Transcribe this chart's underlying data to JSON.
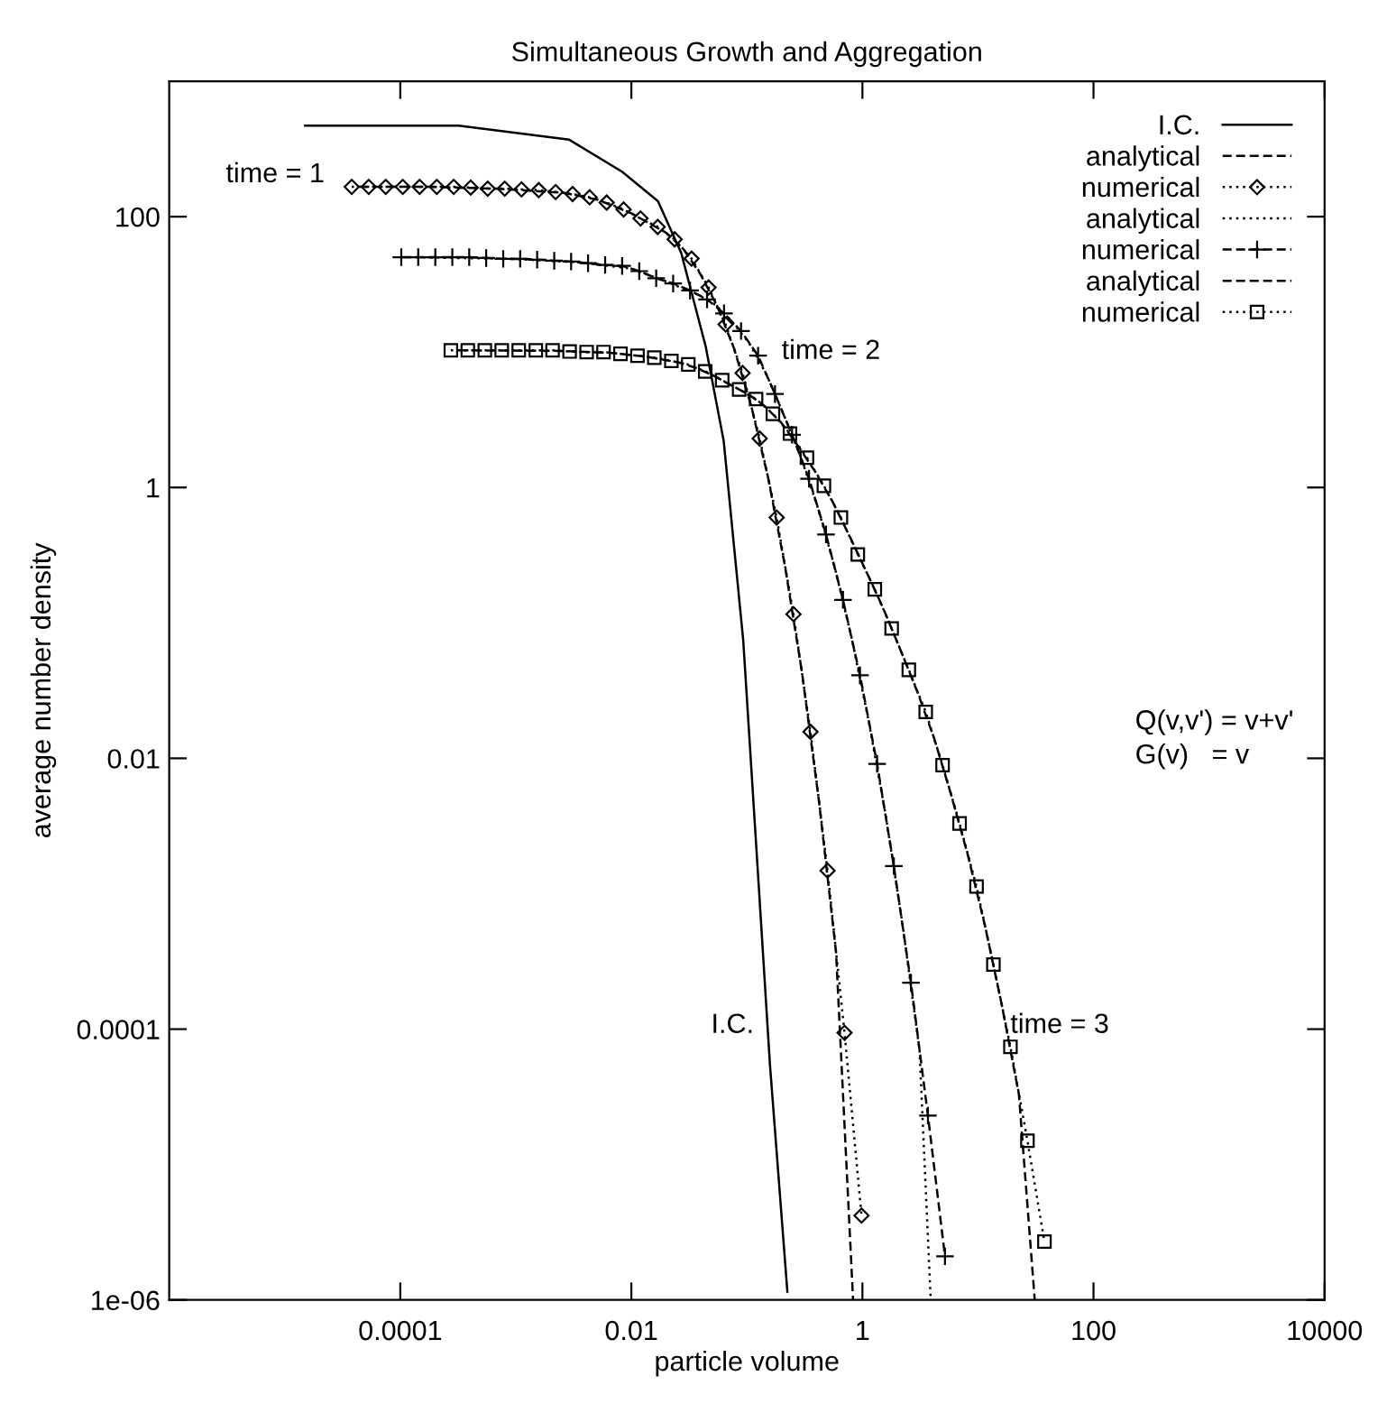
{
  "chart_data": {
    "type": "line",
    "title": "Simultaneous Growth and Aggregation",
    "xlabel": "particle volume",
    "ylabel": "average number density",
    "log": "xy",
    "xlim": [
      1e-06,
      10000
    ],
    "ylim": [
      1e-06,
      1000
    ],
    "xticks": [
      0.0001,
      0.01,
      1,
      100,
      10000
    ],
    "yticks": [
      {
        "value": 1e-06,
        "label": "1e-06"
      },
      {
        "value": 0.0001,
        "label": "0.0001"
      },
      {
        "value": 0.01,
        "label": "0.01"
      },
      1,
      100
    ],
    "grid": false,
    "legend": "top right",
    "series": [
      {
        "name": "I.C.",
        "color": "#000000",
        "line_style": "solid",
        "marker": "none",
        "x": [
          1.5e-05,
          0.00032,
          0.0029,
          0.0083,
          0.017,
          0.027,
          0.044,
          0.063,
          0.093,
          0.127,
          0.158,
          0.224
        ],
        "values": [
          470,
          470,
          370,
          215,
          130,
          54,
          11,
          2.2,
          0.074,
          0.0011,
          5.6e-05,
          1.15e-06
        ]
      },
      {
        "name": "analytical",
        "color": "#000000",
        "line_style": "dashed",
        "marker": "none",
        "x": [
          4.5e-05,
          0.000174,
          0.000677,
          0.00262,
          0.00515,
          0.0102,
          0.02,
          0.0281,
          0.0393,
          0.0552,
          0.0775,
          0.109,
          0.153,
          0.214,
          0.3,
          0.421,
          0.591,
          0.83
        ],
        "values": [
          166,
          166,
          161,
          150,
          133,
          105,
          76,
          58,
          38,
          22,
          10.6,
          4.0,
          1.17,
          0.26,
          0.043,
          0.0048,
          0.00037,
          1e-06
        ]
      },
      {
        "name": "numerical",
        "color": "#000000",
        "line_style": "dotted",
        "marker": "diamond",
        "x": [
          3.8e-05,
          5.33e-05,
          7.48e-05,
          0.000105,
          0.000147,
          0.000207,
          0.00029,
          0.000407,
          0.000571,
          0.000801,
          0.00112,
          0.00158,
          0.00221,
          0.0031,
          0.00435,
          0.00611,
          0.00857,
          0.012,
          0.0169,
          0.0237,
          0.0332,
          0.0466,
          0.0654,
          0.0917,
          0.129,
          0.181,
          0.253,
          0.355,
          0.499,
          0.7,
          0.982
        ],
        "values": [
          166,
          166,
          166,
          166,
          166,
          166,
          166,
          164,
          161,
          161,
          159,
          157,
          152,
          147,
          139,
          127,
          113,
          97,
          84,
          68,
          49,
          30,
          16,
          7.0,
          2.3,
          0.6,
          0.116,
          0.0157,
          0.00148,
          9.4e-05,
          4.2e-06
        ]
      },
      {
        "name": "analytical",
        "color": "#000000",
        "line_style": "dotted",
        "marker": "none",
        "x": [
          0.000121,
          0.000922,
          0.00357,
          0.00986,
          0.0194,
          0.0382,
          0.0536,
          0.0751,
          0.105,
          0.148,
          0.207,
          0.292,
          0.409,
          0.574,
          0.805,
          1.13,
          1.59,
          2.22,
          3.12,
          3.9
        ],
        "values": [
          50.2,
          48.8,
          46,
          41.4,
          33.6,
          26.4,
          22.3,
          16.6,
          11.6,
          6.8,
          3.5,
          1.69,
          0.72,
          0.26,
          0.078,
          0.019,
          0.0038,
          0.0006,
          7e-05,
          1e-06
        ]
      },
      {
        "name": "numerical",
        "color": "#000000",
        "line_style": "dashed",
        "marker": "cross",
        "x": [
          0.000102,
          0.000143,
          0.000201,
          0.000282,
          0.000395,
          0.000554,
          0.000778,
          0.00109,
          0.00153,
          0.00215,
          0.00301,
          0.00422,
          0.00593,
          0.00832,
          0.0117,
          0.0164,
          0.023,
          0.0322,
          0.0452,
          0.0634,
          0.089,
          0.125,
          0.175,
          0.246,
          0.345,
          0.484,
          0.679,
          0.952,
          1.34,
          1.87,
          2.63,
          3.69,
          5.18
        ],
        "values": [
          50.2,
          50.2,
          50.2,
          50.2,
          50.2,
          49.5,
          48.8,
          48.8,
          48.1,
          47.3,
          46.6,
          45.3,
          44,
          43.3,
          39.6,
          35.1,
          32.1,
          28.5,
          24.5,
          19.3,
          14.3,
          9.4,
          4.9,
          2.45,
          1.16,
          0.45,
          0.148,
          0.041,
          0.0091,
          0.0016,
          0.00022,
          2.3e-05,
          2.1e-06
        ]
      },
      {
        "name": "analytical",
        "color": "#000000",
        "line_style": "dashed",
        "marker": "none",
        "x": [
          0.000325,
          0.00247,
          0.0068,
          0.0134,
          0.0263,
          0.0369,
          0.0517,
          0.0724,
          0.102,
          0.142,
          0.199,
          0.28,
          0.392,
          0.55,
          0.771,
          1.08,
          1.52,
          2.12,
          2.99,
          4.18,
          5.85,
          8.21,
          11.5,
          16.1,
          22.6,
          31
        ],
        "values": [
          10.3,
          10.2,
          9.85,
          9.25,
          8.35,
          7.6,
          6.7,
          5.7,
          4.9,
          4.0,
          3.0,
          2.0,
          1.3,
          0.79,
          0.44,
          0.24,
          0.127,
          0.064,
          0.031,
          0.014,
          0.0054,
          0.0019,
          0.00058,
          0.00015,
          3.3e-05,
          1e-06
        ]
      },
      {
        "name": "numerical",
        "color": "#000000",
        "line_style": "dotted",
        "marker": "square",
        "x": [
          0.000274,
          0.000384,
          0.000539,
          0.000755,
          0.00106,
          0.00149,
          0.00208,
          0.00292,
          0.0041,
          0.00574,
          0.00805,
          0.0113,
          0.0158,
          0.0222,
          0.0311,
          0.0436,
          0.0611,
          0.0857,
          0.12,
          0.168,
          0.236,
          0.331,
          0.464,
          0.651,
          0.912,
          1.28,
          1.79,
          2.52,
          3.53,
          4.94,
          6.93,
          9.72,
          13.6,
          19.1,
          26.8,
          37.6
        ],
        "values": [
          10.3,
          10.3,
          10.3,
          10.3,
          10.3,
          10.3,
          10.3,
          10.1,
          10.0,
          10.0,
          9.7,
          9.4,
          9.1,
          8.6,
          8.1,
          7.2,
          6.2,
          5.3,
          4.5,
          3.5,
          2.5,
          1.66,
          1.03,
          0.6,
          0.32,
          0.177,
          0.091,
          0.045,
          0.022,
          0.0089,
          0.0033,
          0.00113,
          0.0003,
          7.4e-05,
          1.5e-05,
          2.7e-06
        ]
      }
    ],
    "annotations": [
      "time = 1",
      "time = 2",
      "time = 3",
      "I.C.",
      "Q(v,v') = v+v'",
      "G(v)   = v"
    ]
  }
}
